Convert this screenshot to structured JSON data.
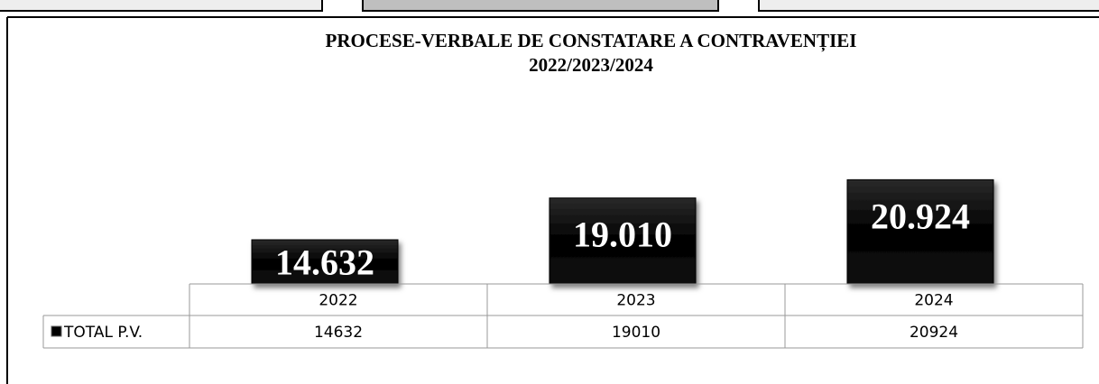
{
  "chart_data": {
    "type": "bar",
    "title": [
      "PROCESE-VERBALE DE CONSTATARE A CONTRAVENȚIEI",
      "2022/2023/2024"
    ],
    "categories": [
      "2022",
      "2023",
      "2024"
    ],
    "series": [
      {
        "name": "TOTAL P.V.",
        "color": "#000000",
        "values": [
          14632,
          19010,
          20924
        ],
        "value_labels": [
          "14.632",
          "19.010",
          "20.924"
        ]
      }
    ],
    "ylim": [
      10000,
      22000
    ],
    "data_table": true
  }
}
